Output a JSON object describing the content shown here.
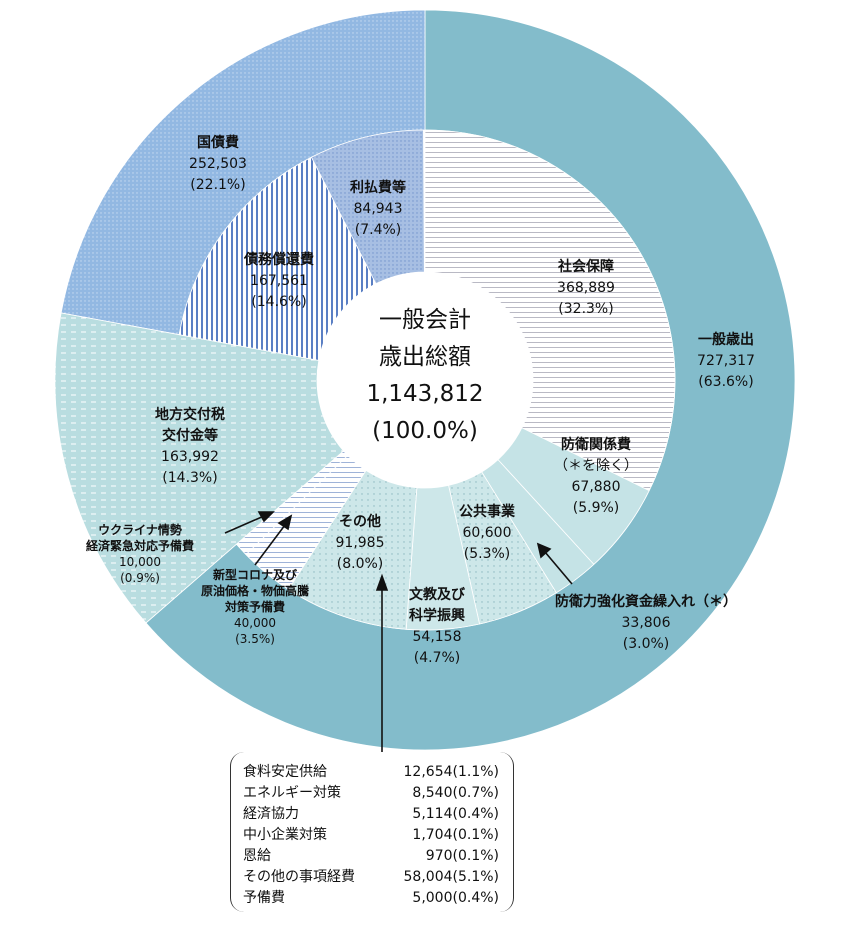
{
  "chart_data": {
    "type": "pie",
    "title": "一般会計歳出総額",
    "total": {
      "label_line1": "一般会計",
      "label_line2": "歳出総額",
      "value": "1,143,812",
      "pct": "(100.0%)"
    },
    "outer": [
      {
        "name": "一般歳出",
        "value": "727,317",
        "pct": "(63.6%)",
        "p": 63.6,
        "color": "#83bccb"
      },
      {
        "name": "地方交付税交付金等",
        "value": "163,992",
        "pct": "(14.3%)",
        "p": 14.3,
        "color": "#b9dde0"
      },
      {
        "name": "国債費",
        "value": "252,503",
        "pct": "(22.1%)",
        "p": 22.1,
        "color": "#92b8e2"
      }
    ],
    "inner": [
      {
        "name": "社会保障",
        "value": "368,889",
        "pct": "(32.3%)",
        "p": 32.3
      },
      {
        "name": "防衛関係費（＊を除く）",
        "value": "67,880",
        "pct": "(5.9%)",
        "p": 5.9
      },
      {
        "name": "防衛力強化資金繰入れ(＊)",
        "value": "33,806",
        "pct": "(3.0%)",
        "p": 3.0
      },
      {
        "name": "公共事業",
        "value": "60,600",
        "pct": "(5.3%)",
        "p": 5.3
      },
      {
        "name": "文教及び科学振興",
        "value": "54,158",
        "pct": "(4.7%)",
        "p": 4.7
      },
      {
        "name": "その他",
        "value": "91,985",
        "pct": "(8.0%)",
        "p": 8.0
      },
      {
        "name": "新型コロナ及び原油価格・物価高騰対策予備費",
        "value": "40,000",
        "pct": "(3.5%)",
        "p": 3.5
      },
      {
        "name": "ウクライナ情勢経済緊急対応予備費",
        "value": "10,000",
        "pct": "(0.9%)",
        "p": 0.9
      },
      {
        "name": "地方交付税交付金等",
        "value": "163,992",
        "pct": "(14.3%)",
        "p": 14.3
      },
      {
        "name": "債務償還費",
        "value": "167,561",
        "pct": "(14.6%)",
        "p": 14.6
      },
      {
        "name": "利払費等",
        "value": "84,943",
        "pct": "(7.4%)",
        "p": 7.4
      }
    ],
    "other_breakdown": [
      {
        "name": "食料安定供給",
        "value": "12,654(1.1%)"
      },
      {
        "name": "エネルギー対策",
        "value": "8,540(0.7%)"
      },
      {
        "name": "経済協力",
        "value": "5,114(0.4%)"
      },
      {
        "name": "中小企業対策",
        "value": "1,704(0.1%)"
      },
      {
        "name": "恩給",
        "value": "970(0.1%)"
      },
      {
        "name": "その他の事項経費",
        "value": "58,004(5.1%)"
      },
      {
        "name": "予備費",
        "value": "5,000(0.4%)"
      }
    ]
  },
  "labels": {
    "kokusai": "国債費",
    "chiho1": "地方交付税",
    "chiho2": "交付金等",
    "saimu": "債務償還費",
    "ribarai": "利払費等",
    "shakai": "社会保障",
    "ippan": "一般歳出",
    "boei1": "防衛関係費",
    "boei2": "（＊を除く）",
    "kokyo": "公共事業",
    "bunkyo1": "文教及び",
    "bunkyo2": "科学振興",
    "sonota": "その他",
    "kyoka": "防衛力強化資金繰入れ（＊）",
    "ukr1": "ウクライナ情勢",
    "ukr2": "経済緊急対応予備費",
    "cor1": "新型コロナ及び",
    "cor2": "原油価格・物価高騰",
    "cor3": "対策予備費"
  }
}
